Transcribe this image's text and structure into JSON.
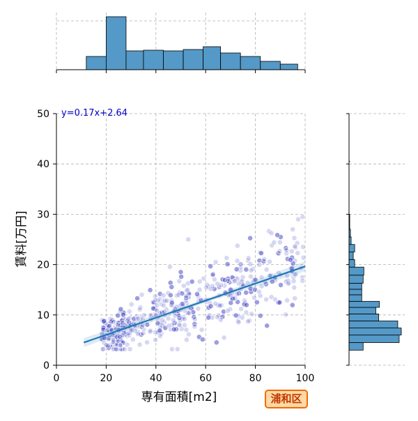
{
  "badge": "浦和区",
  "chart_data": {
    "type": "scatter",
    "title": "",
    "xlabel": "専有面積[m2]",
    "ylabel": "賃料[万円]",
    "xlim": [
      0,
      100
    ],
    "ylim": [
      0,
      50
    ],
    "xticks": [
      "0",
      "20",
      "40",
      "60",
      "80",
      "100"
    ],
    "yticks": [
      "0",
      "10",
      "20",
      "30",
      "40",
      "50"
    ],
    "grid": true,
    "regression": {
      "slope": 0.17,
      "intercept": 2.64,
      "x_range": [
        11,
        100
      ],
      "label": "y=0.17x+2.64"
    },
    "scatter_summary": {
      "x_range": [
        11,
        100
      ],
      "y_range": [
        3,
        30
      ],
      "note_points": [
        [
          20,
          4
        ],
        [
          25,
          7
        ],
        [
          30,
          8
        ],
        [
          40,
          10
        ],
        [
          50,
          11
        ],
        [
          60,
          13
        ],
        [
          70,
          15
        ],
        [
          80,
          17
        ],
        [
          90,
          18
        ],
        [
          99,
          29.5
        ],
        [
          95,
          27
        ],
        [
          53,
          25
        ]
      ]
    },
    "x_histogram": {
      "bin_edges": [
        0,
        12,
        20,
        28,
        35,
        43,
        51,
        59,
        66,
        74,
        82,
        90,
        97
      ],
      "counts": [
        0,
        19,
        76,
        27,
        28,
        27,
        29,
        33,
        24,
        19,
        12,
        8
      ]
    },
    "y_histogram": {
      "bin_edges": [
        3,
        4.5,
        6,
        7.4,
        8.8,
        10.2,
        11.5,
        12.7,
        14,
        15.1,
        16.3,
        17.9,
        19.5,
        21,
        22.5,
        24,
        25.5,
        27,
        28.6,
        30
      ],
      "counts": [
        20,
        71,
        74,
        69,
        42,
        38,
        43,
        18,
        18,
        18,
        20,
        21,
        8,
        6,
        8,
        3,
        2,
        1,
        1
      ]
    },
    "colors": {
      "points": "#4a4fc4",
      "fit_line": "#1f77b4",
      "hist": "#5499c7",
      "equation": "#0000cc",
      "grid": "#b0b0b0"
    }
  }
}
